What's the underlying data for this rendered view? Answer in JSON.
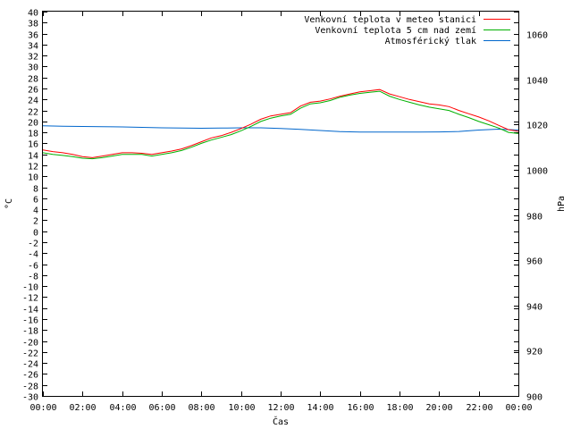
{
  "chart_data": {
    "type": "line",
    "title": "",
    "xlabel": "Čas",
    "ylabel": "°C",
    "y2label": "hPa",
    "x_ticks": [
      "00:00",
      "02:00",
      "04:00",
      "06:00",
      "08:00",
      "10:00",
      "12:00",
      "14:00",
      "16:00",
      "18:00",
      "20:00",
      "22:00",
      "00:00"
    ],
    "xlim": [
      0,
      24
    ],
    "ylim": [
      -30,
      40
    ],
    "y_ticks": [
      40,
      38,
      36,
      34,
      32,
      30,
      28,
      26,
      24,
      22,
      20,
      18,
      16,
      14,
      12,
      10,
      8,
      6,
      4,
      2,
      0,
      -2,
      -4,
      -6,
      -8,
      -10,
      -12,
      -14,
      -16,
      -18,
      -20,
      -22,
      -24,
      -26,
      -28,
      -30
    ],
    "y2lim": [
      900,
      1070
    ],
    "y2_ticks": [
      1060,
      1040,
      1020,
      1000,
      980,
      960,
      940,
      920,
      900
    ],
    "legend_position": "top-right",
    "grid": false,
    "series": [
      {
        "name": "Venkovní teplota v meteo stanici",
        "color": "#ff0000",
        "axis": "left",
        "x": [
          0,
          0.5,
          1,
          1.5,
          2,
          2.5,
          3,
          3.5,
          4,
          4.5,
          5,
          5.5,
          6,
          6.5,
          7,
          7.5,
          8,
          8.5,
          9,
          9.5,
          10,
          10.5,
          11,
          11.5,
          12,
          12.5,
          13,
          13.5,
          14,
          14.5,
          15,
          15.5,
          16,
          16.5,
          17,
          17.5,
          18,
          18.5,
          19,
          19.5,
          20,
          20.5,
          21,
          21.5,
          22,
          22.5,
          23,
          23.5,
          24
        ],
        "values": [
          14.8,
          14.5,
          14.3,
          14.0,
          13.6,
          13.4,
          13.7,
          14.0,
          14.3,
          14.3,
          14.2,
          14.0,
          14.3,
          14.6,
          15.0,
          15.6,
          16.3,
          17.0,
          17.4,
          18.0,
          18.7,
          19.5,
          20.4,
          21.0,
          21.3,
          21.6,
          22.8,
          23.5,
          23.7,
          24.1,
          24.6,
          25.0,
          25.4,
          25.6,
          25.8,
          25.0,
          24.5,
          24.0,
          23.6,
          23.2,
          23.0,
          22.7,
          22.0,
          21.4,
          20.8,
          20.1,
          19.3,
          18.5,
          18.2
        ]
      },
      {
        "name": "Venkovní teplota 5 cm nad zemí",
        "color": "#00b000",
        "axis": "left",
        "x": [
          0,
          0.5,
          1,
          1.5,
          2,
          2.5,
          3,
          3.5,
          4,
          4.5,
          5,
          5.5,
          6,
          6.5,
          7,
          7.5,
          8,
          8.5,
          9,
          9.5,
          10,
          10.5,
          11,
          11.5,
          12,
          12.5,
          13,
          13.5,
          14,
          14.5,
          15,
          15.5,
          16,
          16.5,
          17,
          17.5,
          18,
          18.5,
          19,
          19.5,
          20,
          20.5,
          21,
          21.5,
          22,
          22.5,
          23,
          23.5,
          24
        ],
        "values": [
          14.3,
          14.0,
          13.8,
          13.6,
          13.3,
          13.2,
          13.4,
          13.7,
          14.0,
          14.0,
          14.0,
          13.7,
          14.0,
          14.3,
          14.7,
          15.3,
          16.0,
          16.6,
          17.1,
          17.6,
          18.3,
          19.1,
          20.0,
          20.6,
          21.0,
          21.3,
          22.4,
          23.2,
          23.4,
          23.8,
          24.4,
          24.8,
          25.1,
          25.3,
          25.5,
          24.6,
          24.0,
          23.5,
          23.0,
          22.6,
          22.3,
          22.0,
          21.3,
          20.7,
          20.0,
          19.4,
          18.8,
          18.0,
          17.8
        ]
      },
      {
        "name": "Atmosférický tlak",
        "color": "#0066cc",
        "axis": "right",
        "x": [
          0,
          1,
          2,
          3,
          4,
          5,
          6,
          7,
          8,
          9,
          10,
          11,
          12,
          13,
          14,
          15,
          16,
          17,
          18,
          19,
          20,
          21,
          22,
          23,
          24
        ],
        "values": [
          1019.5,
          1019.3,
          1019.2,
          1019.1,
          1019.0,
          1018.8,
          1018.6,
          1018.5,
          1018.4,
          1018.5,
          1018.6,
          1018.6,
          1018.3,
          1017.9,
          1017.4,
          1016.9,
          1016.7,
          1016.7,
          1016.7,
          1016.7,
          1016.8,
          1017.0,
          1017.6,
          1018.0,
          1017.6
        ]
      }
    ]
  }
}
